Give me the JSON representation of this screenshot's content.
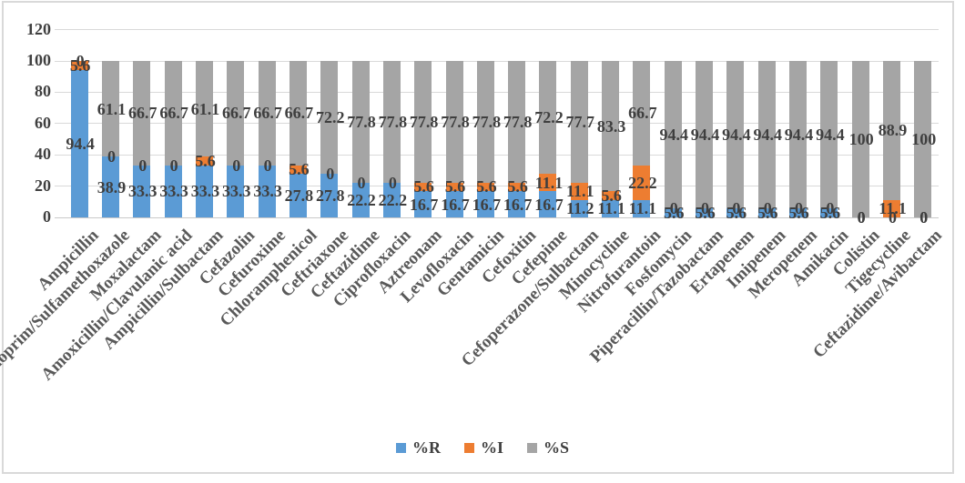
{
  "chart_data": {
    "type": "bar",
    "variant": "100-percent-stacked-column",
    "title": "",
    "xlabel": "",
    "ylabel": "",
    "ylim": [
      0,
      120
    ],
    "yticks": [
      0,
      20,
      40,
      60,
      80,
      100,
      120
    ],
    "grid": true,
    "data_labels": true,
    "legend_position": "bottom",
    "categories": [
      "Ampicillin",
      "Trimethoprim/Sulfamethoxazole",
      "Moxalactam",
      "Amoxicillin/Clavulanic acid",
      "Ampicillin/Sulbactam",
      "Cefazolin",
      "Cefuroxime",
      "Chloramphenicol",
      "Ceftriaxone",
      "Ceftazidime",
      "Ciprofloxacin",
      "Aztreonam",
      "Levofloxacin",
      "Gentamicin",
      "Cefoxitin",
      "Cefepime",
      "Cefoperazone/Sulbactam",
      "Minocycline",
      "Nitrofurantoin",
      "Fosfomycin",
      "Piperacillin/Tazobactam",
      "Ertapenem",
      "Imipenem",
      "Meropenem",
      "Amikacin",
      "Colistin",
      "Tigecycline",
      "Ceftazidime/Avibactam"
    ],
    "series": [
      {
        "name": "%R",
        "color": "#5B9BD5",
        "values": [
          94.4,
          38.9,
          33.3,
          33.3,
          33.3,
          33.3,
          33.3,
          27.8,
          27.8,
          22.2,
          22.2,
          16.7,
          16.7,
          16.7,
          16.7,
          16.7,
          11.2,
          11.1,
          11.1,
          5.6,
          5.6,
          5.6,
          5.6,
          5.6,
          5.6,
          0,
          0,
          0
        ]
      },
      {
        "name": "%I",
        "color": "#ED7D31",
        "values": [
          5.6,
          0,
          0,
          0,
          5.6,
          0,
          0,
          5.6,
          0,
          0,
          0,
          5.6,
          5.6,
          5.6,
          5.6,
          11.1,
          11.1,
          5.6,
          22.2,
          0,
          0,
          0,
          0,
          0,
          0,
          0,
          11.1,
          0
        ]
      },
      {
        "name": "%S",
        "color": "#A5A5A5",
        "values": [
          0,
          61.1,
          66.7,
          66.7,
          61.1,
          66.7,
          66.7,
          66.7,
          72.2,
          77.8,
          77.8,
          77.8,
          77.8,
          77.8,
          77.8,
          72.2,
          77.7,
          83.3,
          66.7,
          94.4,
          94.4,
          94.4,
          94.4,
          94.4,
          94.4,
          100,
          88.9,
          100
        ]
      }
    ]
  },
  "colors": {
    "series_r": "#5B9BD5",
    "series_i": "#ED7D31",
    "series_s": "#A5A5A5",
    "gridline": "#D9D9D9",
    "axis_line": "#C9C9C9",
    "frame_border": "#D9D9D9",
    "data_label_text": "#3F3F3F",
    "axis_text": "#3F3F3F",
    "category_text": "#595959"
  }
}
